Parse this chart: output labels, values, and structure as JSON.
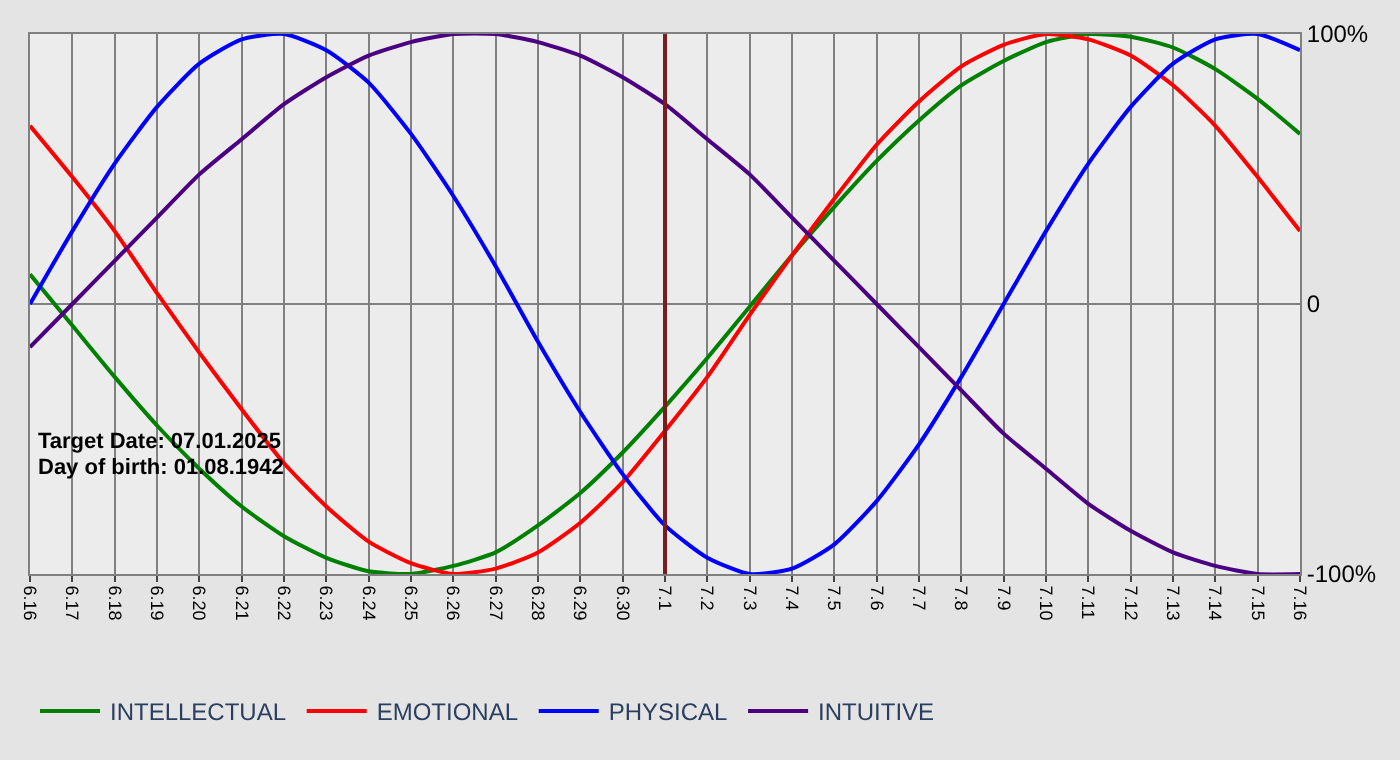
{
  "chart_data": {
    "type": "line",
    "categories": [
      "6.16",
      "6.17",
      "6.18",
      "6.19",
      "6.20",
      "6.21",
      "6.22",
      "6.23",
      "6.24",
      "6.25",
      "6.26",
      "6.27",
      "6.28",
      "6.29",
      "6.30",
      "7.1",
      "7.2",
      "7.3",
      "7.4",
      "7.5",
      "7.6",
      "7.7",
      "7.8",
      "7.9",
      "7.10",
      "7.11",
      "7.12",
      "7.13",
      "7.14",
      "7.15",
      "7.16"
    ],
    "series": [
      {
        "name": "INTELLECTUAL",
        "color": "#008000",
        "values": [
          11,
          -8,
          -27,
          -45,
          -61,
          -75,
          -86,
          -94,
          -99,
          -100,
          -97,
          -92,
          -82,
          -70,
          -55,
          -38,
          -20,
          -1,
          18,
          36,
          53,
          68,
          81,
          90,
          97,
          100,
          99,
          95,
          87,
          76,
          63
        ]
      },
      {
        "name": "EMOTIONAL",
        "color": "#ff0000",
        "values": [
          66,
          47,
          27,
          4,
          -18,
          -39,
          -59,
          -75,
          -88,
          -96,
          -100,
          -98,
          -92,
          -81,
          -66,
          -47,
          -27,
          -4,
          18,
          39,
          59,
          75,
          88,
          96,
          100,
          98,
          92,
          81,
          66,
          47,
          27
        ]
      },
      {
        "name": "PHYSICAL",
        "color": "#0000ff",
        "values": [
          0,
          27,
          52,
          73,
          89,
          98,
          100,
          94,
          82,
          63,
          40,
          14,
          -14,
          -40,
          -63,
          -82,
          -94,
          -100,
          -98,
          -89,
          -73,
          -52,
          -27,
          0,
          27,
          52,
          73,
          89,
          98,
          100,
          94
        ]
      },
      {
        "name": "INTUITIVE",
        "color": "#4b0082",
        "values": [
          -16,
          0,
          16,
          32,
          48,
          61,
          74,
          84,
          92,
          97,
          100,
          100,
          97,
          92,
          84,
          74,
          61,
          48,
          32,
          16,
          0,
          -16,
          -32,
          -48,
          -61,
          -74,
          -84,
          -92,
          -97,
          -100,
          -100
        ]
      }
    ],
    "ylim": [
      -100,
      100
    ],
    "yticks": [
      {
        "value": 100,
        "label": "100%"
      },
      0,
      {
        "value": -100,
        "label": "-100%"
      }
    ],
    "ref_lines": [
      {
        "axis": "x",
        "value": "7.1",
        "color": "#7b1c1c"
      }
    ],
    "annotations": [
      "Target Date: 07.01.2025",
      "Day of birth: 01.08.1942"
    ],
    "grid": true,
    "legend": "bottom",
    "marker": "none",
    "line_style": "solid"
  }
}
